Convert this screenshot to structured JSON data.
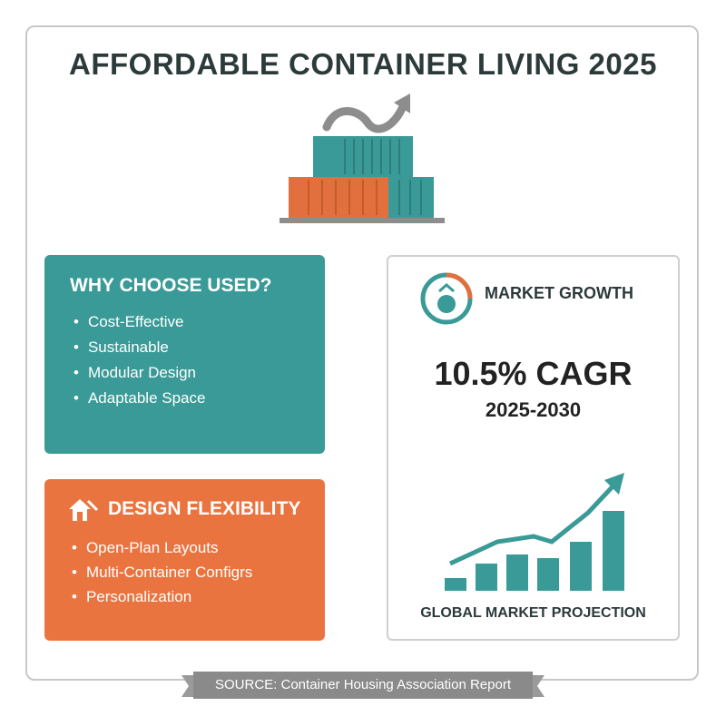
{
  "header": {
    "title": "AFFORDABLE CONTAINER LIVING 2025"
  },
  "why_used": {
    "title": "WHY CHOOSE USED?",
    "items": [
      "Cost-Effective",
      "Sustainable",
      "Modular Design",
      "Adaptable Space"
    ]
  },
  "design": {
    "title": "DESIGN FLEXIBILITY",
    "items": [
      "Open-Plan Layouts",
      "Multi-Container Configrs",
      "Personalization"
    ]
  },
  "market": {
    "title": "MARKET GROWTH",
    "stat": "10.5% CAGR",
    "period": "2025-2030",
    "caption": "GLOBAL MARKET PROJECTION"
  },
  "footer": {
    "source": "SOURCE: Container Housing Association Report"
  }
}
